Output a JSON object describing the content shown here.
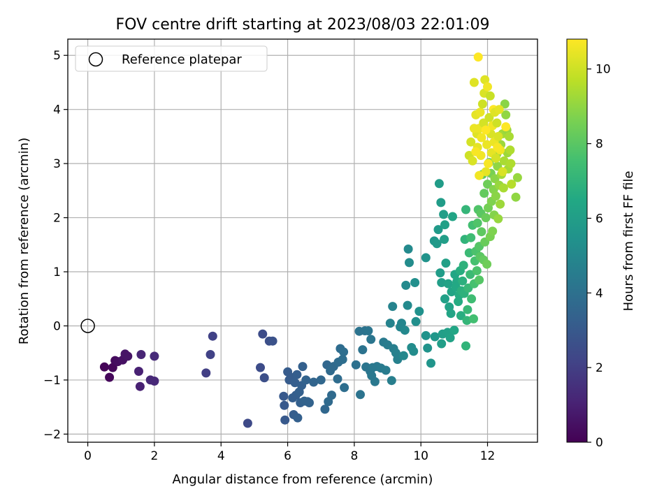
{
  "chart_data": {
    "type": "scatter",
    "title": "FOV centre drift starting at 2023/08/03 22:01:09",
    "xlabel": "Angular distance from reference (arcmin)",
    "ylabel": "Rotation from reference (arcmin)",
    "xlim": [
      -0.6,
      13.5
    ],
    "ylim": [
      -2.15,
      5.3
    ],
    "xticks": [
      "0",
      "2",
      "4",
      "6",
      "8",
      "10",
      "12"
    ],
    "yticks": [
      "−2",
      "−1",
      "0",
      "1",
      "2",
      "3",
      "4",
      "5"
    ],
    "grid": true,
    "legend": {
      "placement": "top-left",
      "entries": [
        "Reference platepar"
      ]
    },
    "reference_point": {
      "x": 0,
      "y": 0
    },
    "colorbar": {
      "label": "Hours from first FF file",
      "range": [
        0,
        10.8
      ],
      "ticks": [
        "0",
        "2",
        "4",
        "6",
        "8",
        "10"
      ],
      "colormap": "viridis"
    },
    "points": [
      {
        "x": 0.5,
        "y": -0.76,
        "c": 0.1
      },
      {
        "x": 0.65,
        "y": -0.95,
        "c": 0.2
      },
      {
        "x": 0.75,
        "y": -0.77,
        "c": 0.2
      },
      {
        "x": 0.82,
        "y": -0.64,
        "c": 0.3
      },
      {
        "x": 0.9,
        "y": -0.66,
        "c": 0.4
      },
      {
        "x": 1.05,
        "y": -0.63,
        "c": 0.5
      },
      {
        "x": 1.12,
        "y": -0.52,
        "c": 0.6
      },
      {
        "x": 1.2,
        "y": -0.56,
        "c": 0.6
      },
      {
        "x": 1.53,
        "y": -0.84,
        "c": 1.0
      },
      {
        "x": 1.57,
        "y": -1.12,
        "c": 1.0
      },
      {
        "x": 1.6,
        "y": -0.53,
        "c": 1.1
      },
      {
        "x": 1.88,
        "y": -1.0,
        "c": 1.2
      },
      {
        "x": 2.0,
        "y": -1.02,
        "c": 1.2
      },
      {
        "x": 2.0,
        "y": -0.56,
        "c": 1.3
      },
      {
        "x": 3.55,
        "y": -0.87,
        "c": 2.0
      },
      {
        "x": 3.68,
        "y": -0.53,
        "c": 2.1
      },
      {
        "x": 3.75,
        "y": -0.19,
        "c": 2.1
      },
      {
        "x": 4.8,
        "y": -1.8,
        "c": 2.4
      },
      {
        "x": 5.18,
        "y": -0.77,
        "c": 2.5
      },
      {
        "x": 5.25,
        "y": -0.15,
        "c": 2.5
      },
      {
        "x": 5.3,
        "y": -0.96,
        "c": 2.6
      },
      {
        "x": 5.45,
        "y": -0.28,
        "c": 2.6
      },
      {
        "x": 5.55,
        "y": -0.28,
        "c": 2.7
      },
      {
        "x": 5.88,
        "y": -1.3,
        "c": 3.0
      },
      {
        "x": 5.9,
        "y": -1.47,
        "c": 3.0
      },
      {
        "x": 5.92,
        "y": -1.74,
        "c": 3.0
      },
      {
        "x": 6.0,
        "y": -0.85,
        "c": 3.1
      },
      {
        "x": 6.05,
        "y": -1.0,
        "c": 3.1
      },
      {
        "x": 6.1,
        "y": -0.95,
        "c": 3.1
      },
      {
        "x": 6.15,
        "y": -1.33,
        "c": 3.2
      },
      {
        "x": 6.18,
        "y": -1.64,
        "c": 3.2
      },
      {
        "x": 6.22,
        "y": -1.05,
        "c": 3.2
      },
      {
        "x": 6.25,
        "y": -1.28,
        "c": 3.2
      },
      {
        "x": 6.28,
        "y": -0.9,
        "c": 3.2
      },
      {
        "x": 6.3,
        "y": -1.7,
        "c": 3.3
      },
      {
        "x": 6.35,
        "y": -1.22,
        "c": 3.3
      },
      {
        "x": 6.38,
        "y": -1.42,
        "c": 3.3
      },
      {
        "x": 6.42,
        "y": -1.1,
        "c": 3.3
      },
      {
        "x": 6.45,
        "y": -0.75,
        "c": 3.3
      },
      {
        "x": 6.5,
        "y": -1.39,
        "c": 3.4
      },
      {
        "x": 6.55,
        "y": -1.0,
        "c": 3.4
      },
      {
        "x": 6.6,
        "y": -1.4,
        "c": 3.4
      },
      {
        "x": 6.65,
        "y": -1.42,
        "c": 3.4
      },
      {
        "x": 6.78,
        "y": -1.04,
        "c": 3.5
      },
      {
        "x": 7.0,
        "y": -1.0,
        "c": 3.6
      },
      {
        "x": 7.12,
        "y": -1.54,
        "c": 3.6
      },
      {
        "x": 7.18,
        "y": -0.72,
        "c": 3.6
      },
      {
        "x": 7.22,
        "y": -1.4,
        "c": 3.7
      },
      {
        "x": 7.28,
        "y": -0.83,
        "c": 3.7
      },
      {
        "x": 7.32,
        "y": -1.28,
        "c": 3.7
      },
      {
        "x": 7.38,
        "y": -0.75,
        "c": 3.7
      },
      {
        "x": 7.5,
        "y": -0.98,
        "c": 3.8
      },
      {
        "x": 7.52,
        "y": -0.67,
        "c": 3.8
      },
      {
        "x": 7.58,
        "y": -0.42,
        "c": 3.8
      },
      {
        "x": 7.65,
        "y": -0.62,
        "c": 3.9
      },
      {
        "x": 7.68,
        "y": -0.48,
        "c": 3.9
      },
      {
        "x": 7.7,
        "y": -1.14,
        "c": 3.9
      },
      {
        "x": 8.05,
        "y": -0.72,
        "c": 4.0
      },
      {
        "x": 8.15,
        "y": -0.1,
        "c": 4.1
      },
      {
        "x": 8.18,
        "y": -1.27,
        "c": 4.1
      },
      {
        "x": 8.25,
        "y": -0.44,
        "c": 4.1
      },
      {
        "x": 8.32,
        "y": -0.09,
        "c": 4.1
      },
      {
        "x": 8.35,
        "y": -0.76,
        "c": 4.2
      },
      {
        "x": 8.42,
        "y": -0.09,
        "c": 4.2
      },
      {
        "x": 8.48,
        "y": -0.84,
        "c": 4.2
      },
      {
        "x": 8.5,
        "y": -0.25,
        "c": 4.2
      },
      {
        "x": 8.52,
        "y": -0.92,
        "c": 4.3
      },
      {
        "x": 8.55,
        "y": -0.77,
        "c": 4.3
      },
      {
        "x": 8.62,
        "y": -1.03,
        "c": 4.3
      },
      {
        "x": 8.68,
        "y": -0.75,
        "c": 4.3
      },
      {
        "x": 8.8,
        "y": -0.78,
        "c": 4.4
      },
      {
        "x": 8.88,
        "y": -0.3,
        "c": 4.4
      },
      {
        "x": 8.95,
        "y": -0.82,
        "c": 4.5
      },
      {
        "x": 9.0,
        "y": -0.35,
        "c": 4.5
      },
      {
        "x": 9.12,
        "y": -1.01,
        "c": 4.6
      },
      {
        "x": 9.18,
        "y": -0.42,
        "c": 4.6
      },
      {
        "x": 9.25,
        "y": -0.5,
        "c": 4.7
      },
      {
        "x": 9.3,
        "y": -0.62,
        "c": 4.7
      },
      {
        "x": 9.15,
        "y": 0.36,
        "c": 4.8
      },
      {
        "x": 9.08,
        "y": 0.05,
        "c": 4.8
      },
      {
        "x": 9.38,
        "y": -0.02,
        "c": 4.9
      },
      {
        "x": 9.42,
        "y": 0.05,
        "c": 4.9
      },
      {
        "x": 9.48,
        "y": -0.55,
        "c": 5.0
      },
      {
        "x": 9.52,
        "y": -0.08,
        "c": 5.0
      },
      {
        "x": 9.55,
        "y": 0.75,
        "c": 5.1
      },
      {
        "x": 9.6,
        "y": 0.38,
        "c": 5.1
      },
      {
        "x": 9.62,
        "y": 1.42,
        "c": 5.1
      },
      {
        "x": 9.65,
        "y": 1.17,
        "c": 5.2
      },
      {
        "x": 9.72,
        "y": -0.4,
        "c": 5.2
      },
      {
        "x": 9.78,
        "y": -0.47,
        "c": 5.2
      },
      {
        "x": 9.82,
        "y": 0.8,
        "c": 5.3
      },
      {
        "x": 9.85,
        "y": 0.08,
        "c": 5.3
      },
      {
        "x": 9.95,
        "y": 0.27,
        "c": 5.4
      },
      {
        "x": 10.15,
        "y": -0.18,
        "c": 5.5
      },
      {
        "x": 10.15,
        "y": 1.26,
        "c": 5.5
      },
      {
        "x": 10.2,
        "y": -0.41,
        "c": 5.5
      },
      {
        "x": 10.3,
        "y": -0.69,
        "c": 5.6
      },
      {
        "x": 10.4,
        "y": 1.57,
        "c": 5.7
      },
      {
        "x": 10.42,
        "y": -0.2,
        "c": 5.7
      },
      {
        "x": 10.48,
        "y": 1.52,
        "c": 5.8
      },
      {
        "x": 10.52,
        "y": 1.78,
        "c": 5.8
      },
      {
        "x": 10.55,
        "y": 2.63,
        "c": 5.9
      },
      {
        "x": 10.58,
        "y": 0.98,
        "c": 5.9
      },
      {
        "x": 10.6,
        "y": 2.28,
        "c": 5.9
      },
      {
        "x": 10.62,
        "y": 0.8,
        "c": 6.0
      },
      {
        "x": 10.62,
        "y": -0.33,
        "c": 6.0
      },
      {
        "x": 10.65,
        "y": -0.15,
        "c": 6.0
      },
      {
        "x": 10.68,
        "y": 2.06,
        "c": 6.0
      },
      {
        "x": 10.7,
        "y": 1.6,
        "c": 6.0
      },
      {
        "x": 10.72,
        "y": 1.87,
        "c": 6.1
      },
      {
        "x": 10.72,
        "y": 0.5,
        "c": 6.1
      },
      {
        "x": 10.75,
        "y": 1.16,
        "c": 6.1
      },
      {
        "x": 10.8,
        "y": -0.12,
        "c": 6.1
      },
      {
        "x": 10.82,
        "y": 0.78,
        "c": 6.2
      },
      {
        "x": 10.85,
        "y": 0.35,
        "c": 6.2
      },
      {
        "x": 10.88,
        "y": -0.22,
        "c": 6.2
      },
      {
        "x": 10.9,
        "y": 0.23,
        "c": 6.3
      },
      {
        "x": 10.92,
        "y": 0.63,
        "c": 6.3
      },
      {
        "x": 10.95,
        "y": 2.02,
        "c": 6.3
      },
      {
        "x": 11.0,
        "y": -0.08,
        "c": 6.4
      },
      {
        "x": 11.02,
        "y": 0.95,
        "c": 6.4
      },
      {
        "x": 11.05,
        "y": 0.72,
        "c": 6.5
      },
      {
        "x": 11.08,
        "y": 0.82,
        "c": 6.5
      },
      {
        "x": 11.12,
        "y": 0.45,
        "c": 6.6
      },
      {
        "x": 11.15,
        "y": 0.57,
        "c": 6.6
      },
      {
        "x": 11.18,
        "y": 1.02,
        "c": 6.7
      },
      {
        "x": 11.2,
        "y": 0.19,
        "c": 6.7
      },
      {
        "x": 11.22,
        "y": 0.65,
        "c": 6.8
      },
      {
        "x": 11.25,
        "y": 0.83,
        "c": 6.8
      },
      {
        "x": 11.28,
        "y": 1.12,
        "c": 6.9
      },
      {
        "x": 11.3,
        "y": 0.6,
        "c": 6.9
      },
      {
        "x": 11.32,
        "y": 1.6,
        "c": 7.0
      },
      {
        "x": 11.35,
        "y": -0.37,
        "c": 7.0
      },
      {
        "x": 11.35,
        "y": 2.15,
        "c": 7.1
      },
      {
        "x": 11.38,
        "y": 0.1,
        "c": 7.1
      },
      {
        "x": 11.4,
        "y": 0.3,
        "c": 7.2
      },
      {
        "x": 11.42,
        "y": 0.7,
        "c": 7.2
      },
      {
        "x": 11.45,
        "y": 1.35,
        "c": 7.3
      },
      {
        "x": 11.48,
        "y": 0.95,
        "c": 7.3
      },
      {
        "x": 11.5,
        "y": 1.63,
        "c": 7.4
      },
      {
        "x": 11.52,
        "y": 0.5,
        "c": 7.4
      },
      {
        "x": 11.55,
        "y": 1.86,
        "c": 7.5
      },
      {
        "x": 11.58,
        "y": 0.13,
        "c": 7.5
      },
      {
        "x": 11.6,
        "y": 0.78,
        "c": 7.6
      },
      {
        "x": 11.62,
        "y": 1.2,
        "c": 7.6
      },
      {
        "x": 11.65,
        "y": 1.38,
        "c": 7.7
      },
      {
        "x": 11.68,
        "y": 1.02,
        "c": 7.7
      },
      {
        "x": 11.7,
        "y": 1.9,
        "c": 7.8
      },
      {
        "x": 11.72,
        "y": 2.15,
        "c": 7.8
      },
      {
        "x": 11.75,
        "y": 1.47,
        "c": 7.9
      },
      {
        "x": 11.75,
        "y": 0.85,
        "c": 7.9
      },
      {
        "x": 11.78,
        "y": 1.28,
        "c": 8.0
      },
      {
        "x": 11.8,
        "y": 2.08,
        "c": 8.0
      },
      {
        "x": 11.82,
        "y": 1.74,
        "c": 8.1
      },
      {
        "x": 11.85,
        "y": 2.8,
        "c": 8.1
      },
      {
        "x": 11.88,
        "y": 1.22,
        "c": 8.2
      },
      {
        "x": 11.9,
        "y": 2.45,
        "c": 8.2
      },
      {
        "x": 11.92,
        "y": 1.55,
        "c": 8.3
      },
      {
        "x": 11.95,
        "y": 2.0,
        "c": 8.3
      },
      {
        "x": 11.98,
        "y": 1.14,
        "c": 8.4
      },
      {
        "x": 12.0,
        "y": 2.62,
        "c": 8.4
      },
      {
        "x": 12.02,
        "y": 2.18,
        "c": 8.5
      },
      {
        "x": 12.05,
        "y": 3.02,
        "c": 8.5
      },
      {
        "x": 12.08,
        "y": 1.65,
        "c": 8.6
      },
      {
        "x": 12.1,
        "y": 2.82,
        "c": 8.6
      },
      {
        "x": 12.12,
        "y": 2.3,
        "c": 8.7
      },
      {
        "x": 12.15,
        "y": 1.75,
        "c": 8.7
      },
      {
        "x": 12.18,
        "y": 2.52,
        "c": 8.8
      },
      {
        "x": 12.2,
        "y": 2.05,
        "c": 8.8
      },
      {
        "x": 12.22,
        "y": 2.72,
        "c": 8.9
      },
      {
        "x": 12.25,
        "y": 2.4,
        "c": 8.9
      },
      {
        "x": 12.28,
        "y": 3.18,
        "c": 9.0
      },
      {
        "x": 12.3,
        "y": 2.95,
        "c": 9.0
      },
      {
        "x": 12.32,
        "y": 1.98,
        "c": 9.1
      },
      {
        "x": 12.35,
        "y": 2.6,
        "c": 9.1
      },
      {
        "x": 12.38,
        "y": 2.25,
        "c": 9.2
      },
      {
        "x": 12.4,
        "y": 3.35,
        "c": 9.2
      },
      {
        "x": 12.42,
        "y": 2.8,
        "c": 9.3
      },
      {
        "x": 12.45,
        "y": 3.55,
        "c": 9.3
      },
      {
        "x": 12.48,
        "y": 2.55,
        "c": 9.4
      },
      {
        "x": 12.5,
        "y": 3.05,
        "c": 9.4
      },
      {
        "x": 12.52,
        "y": 4.1,
        "c": 8.9
      },
      {
        "x": 12.55,
        "y": 3.9,
        "c": 9.0
      },
      {
        "x": 12.58,
        "y": 3.62,
        "c": 9.1
      },
      {
        "x": 12.6,
        "y": 3.2,
        "c": 9.2
      },
      {
        "x": 12.62,
        "y": 2.9,
        "c": 9.3
      },
      {
        "x": 12.65,
        "y": 3.5,
        "c": 9.4
      },
      {
        "x": 12.68,
        "y": 3.25,
        "c": 9.5
      },
      {
        "x": 12.7,
        "y": 3.0,
        "c": 9.5
      },
      {
        "x": 12.72,
        "y": 2.62,
        "c": 9.6
      },
      {
        "x": 12.85,
        "y": 2.38,
        "c": 9.0
      },
      {
        "x": 12.9,
        "y": 2.74,
        "c": 9.1
      },
      {
        "x": 11.45,
        "y": 3.15,
        "c": 10.0
      },
      {
        "x": 11.5,
        "y": 3.4,
        "c": 10.1
      },
      {
        "x": 11.55,
        "y": 3.05,
        "c": 10.2
      },
      {
        "x": 11.6,
        "y": 4.5,
        "c": 10.3
      },
      {
        "x": 11.65,
        "y": 3.9,
        "c": 10.4
      },
      {
        "x": 11.68,
        "y": 3.55,
        "c": 10.3
      },
      {
        "x": 11.7,
        "y": 3.3,
        "c": 10.4
      },
      {
        "x": 11.72,
        "y": 4.97,
        "c": 10.8
      },
      {
        "x": 11.75,
        "y": 3.65,
        "c": 10.5
      },
      {
        "x": 11.78,
        "y": 3.95,
        "c": 10.5
      },
      {
        "x": 11.8,
        "y": 3.15,
        "c": 10.6
      },
      {
        "x": 11.82,
        "y": 3.48,
        "c": 10.6
      },
      {
        "x": 11.85,
        "y": 4.1,
        "c": 10.0
      },
      {
        "x": 11.88,
        "y": 3.75,
        "c": 10.1
      },
      {
        "x": 11.9,
        "y": 4.3,
        "c": 10.2
      },
      {
        "x": 11.92,
        "y": 4.55,
        "c": 10.3
      },
      {
        "x": 11.95,
        "y": 2.85,
        "c": 10.4
      },
      {
        "x": 11.98,
        "y": 3.35,
        "c": 10.5
      },
      {
        "x": 12.0,
        "y": 4.42,
        "c": 10.6
      },
      {
        "x": 12.02,
        "y": 3.0,
        "c": 10.7
      },
      {
        "x": 12.05,
        "y": 3.85,
        "c": 10.0
      },
      {
        "x": 12.08,
        "y": 4.25,
        "c": 9.9
      },
      {
        "x": 12.1,
        "y": 3.55,
        "c": 10.2
      },
      {
        "x": 12.12,
        "y": 3.2,
        "c": 10.4
      },
      {
        "x": 12.15,
        "y": 3.7,
        "c": 10.6
      },
      {
        "x": 12.18,
        "y": 4.0,
        "c": 10.8
      },
      {
        "x": 12.2,
        "y": 3.4,
        "c": 10.5
      },
      {
        "x": 12.22,
        "y": 3.95,
        "c": 10.3
      },
      {
        "x": 12.25,
        "y": 3.1,
        "c": 10.1
      },
      {
        "x": 12.28,
        "y": 3.75,
        "c": 10.0
      },
      {
        "x": 12.32,
        "y": 3.5,
        "c": 10.2
      },
      {
        "x": 12.35,
        "y": 4.0,
        "c": 10.4
      },
      {
        "x": 12.38,
        "y": 3.25,
        "c": 10.6
      },
      {
        "x": 12.45,
        "y": 2.85,
        "c": 10.2
      },
      {
        "x": 12.55,
        "y": 3.68,
        "c": 10.8
      },
      {
        "x": 11.6,
        "y": 3.65,
        "c": 10.5
      },
      {
        "x": 11.65,
        "y": 3.22,
        "c": 10.7
      },
      {
        "x": 11.75,
        "y": 2.78,
        "c": 10.6
      },
      {
        "x": 11.95,
        "y": 3.62,
        "c": 10.8
      },
      {
        "x": 12.3,
        "y": 3.3,
        "c": 10.7
      }
    ]
  }
}
